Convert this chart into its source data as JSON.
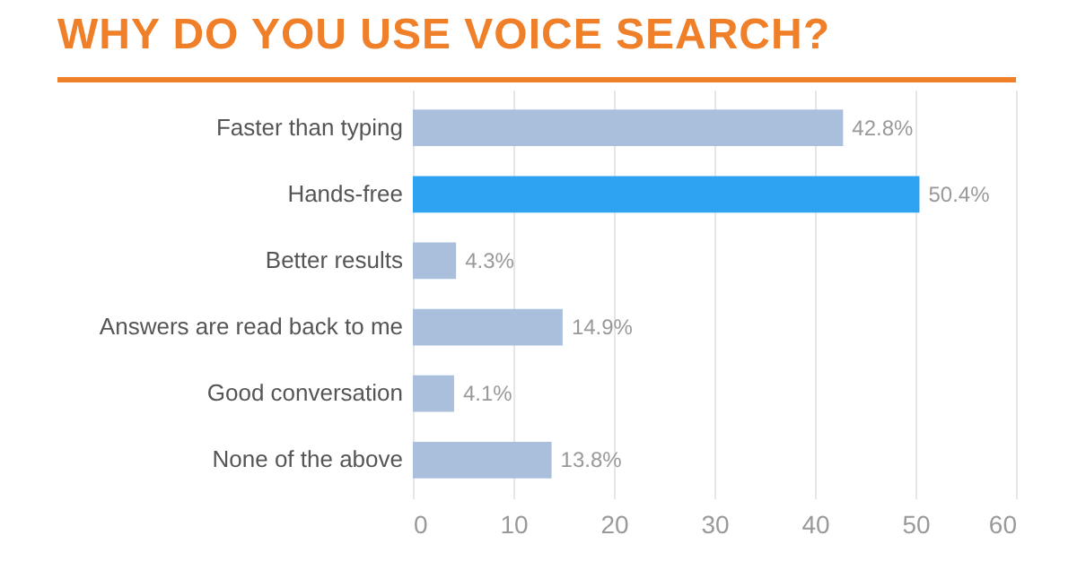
{
  "chart_data": {
    "type": "bar",
    "orientation": "horizontal",
    "title": "WHY DO YOU USE VOICE SEARCH?",
    "categories": [
      "Faster than typing",
      "Hands-free",
      "Better results",
      "Answers are read back to me",
      "Good conversation",
      "None of the above"
    ],
    "values": [
      42.8,
      50.4,
      4.3,
      14.9,
      4.1,
      13.8
    ],
    "colors": [
      "#a9bfdc",
      "#2ea3f2",
      "#a9bfdc",
      "#a9bfdc",
      "#a9bfdc",
      "#a9bfdc"
    ],
    "value_labels": [
      "42.8%",
      "50.4%",
      "4.3%",
      "14.9%",
      "4.1%",
      "13.8%"
    ],
    "xlim": [
      0,
      60
    ],
    "xticks": [
      0,
      10,
      20,
      30,
      40,
      50,
      60
    ],
    "grid": "x"
  }
}
